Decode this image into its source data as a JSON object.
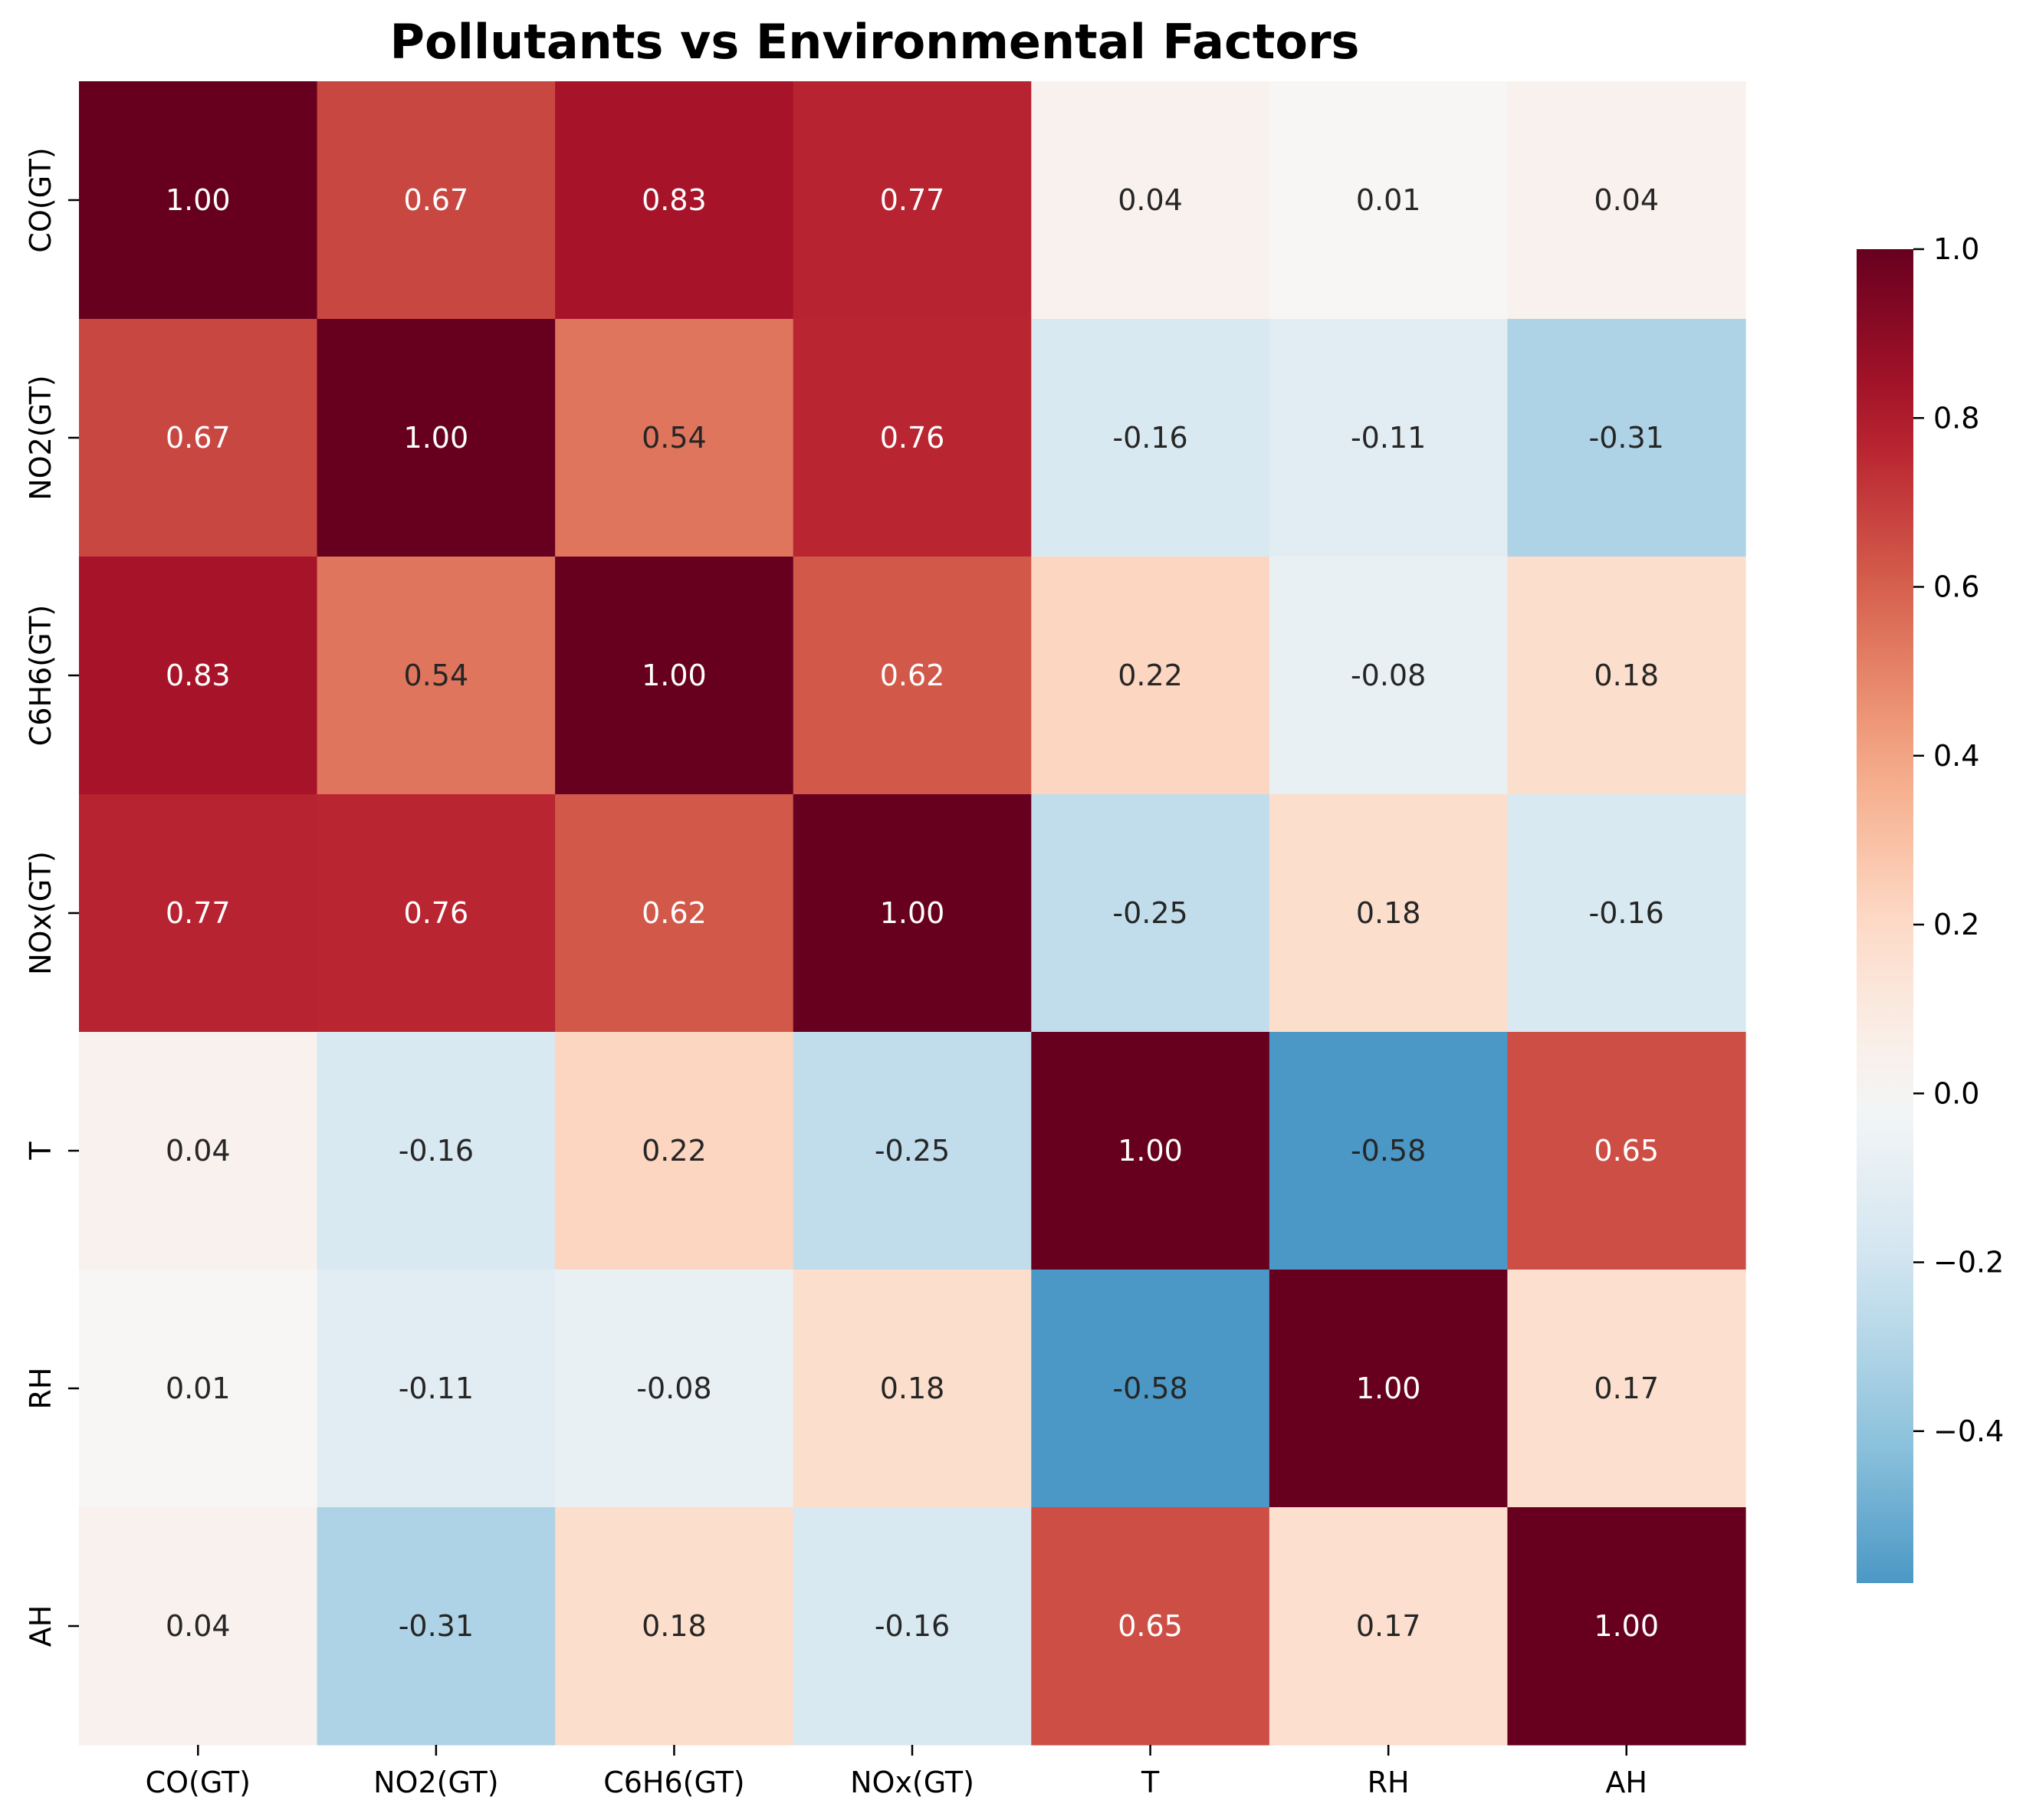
{
  "chart_data": {
    "type": "heatmap",
    "title": "Pollutants vs Environmental Factors",
    "xlabel": "",
    "ylabel": "",
    "x_categories": [
      "CO(GT)",
      "NO2(GT)",
      "C6H6(GT)",
      "NOx(GT)",
      "T",
      "RH",
      "AH"
    ],
    "y_categories": [
      "CO(GT)",
      "NO2(GT)",
      "C6H6(GT)",
      "NOx(GT)",
      "T",
      "RH",
      "AH"
    ],
    "values": [
      [
        1.0,
        0.67,
        0.83,
        0.77,
        0.04,
        0.01,
        0.04
      ],
      [
        0.67,
        1.0,
        0.54,
        0.76,
        -0.16,
        -0.11,
        -0.31
      ],
      [
        0.83,
        0.54,
        1.0,
        0.62,
        0.22,
        -0.08,
        0.18
      ],
      [
        0.77,
        0.76,
        0.62,
        1.0,
        -0.25,
        0.18,
        -0.16
      ],
      [
        0.04,
        -0.16,
        0.22,
        -0.25,
        1.0,
        -0.58,
        0.65
      ],
      [
        0.01,
        -0.11,
        -0.08,
        0.18,
        -0.58,
        1.0,
        0.17
      ],
      [
        0.04,
        -0.31,
        0.18,
        -0.16,
        0.65,
        0.17,
        1.0
      ]
    ],
    "annotation_format": "0.00",
    "colormap": "RdBu_r",
    "colorbar": {
      "range": [
        -0.58,
        1.0
      ],
      "center": 0.0,
      "ticks": [
        -0.4,
        -0.2,
        0.0,
        0.2,
        0.4,
        0.6,
        0.8,
        1.0
      ],
      "tick_labels": [
        "−0.4",
        "−0.2",
        "0.0",
        "0.2",
        "0.4",
        "0.6",
        "0.8",
        "1.0"
      ]
    },
    "grid": false,
    "legend": "colorbar-right"
  }
}
